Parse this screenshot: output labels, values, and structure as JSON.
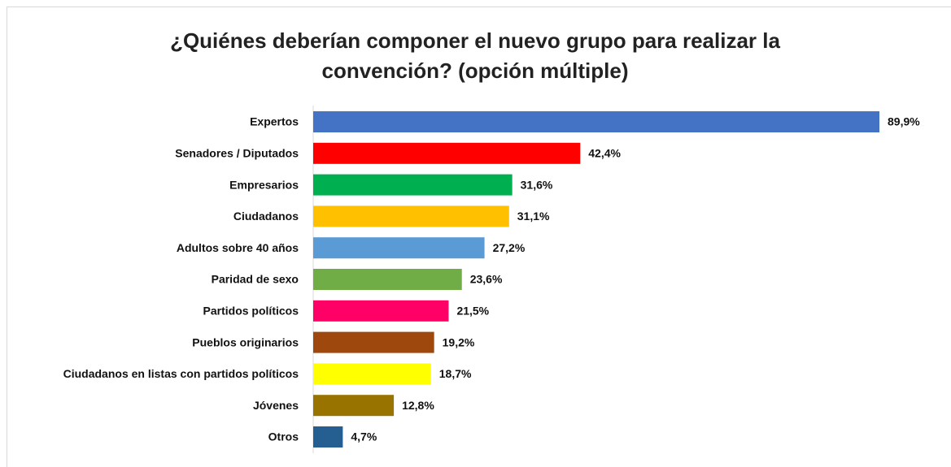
{
  "chart_data": {
    "type": "bar",
    "orientation": "horizontal",
    "title": "¿Quiénes deberían componer el nuevo grupo para realizar la convención? (opción múltiple)",
    "categories": [
      "Expertos",
      "Senadores / Diputados",
      "Empresarios",
      "Ciudadanos",
      "Adultos sobre 40 años",
      "Paridad de sexo",
      "Partidos políticos",
      "Pueblos originarios",
      "Ciudadanos en listas con partidos políticos",
      "Jóvenes",
      "Otros"
    ],
    "values": [
      89.9,
      42.4,
      31.6,
      31.1,
      27.2,
      23.6,
      21.5,
      19.2,
      18.7,
      12.8,
      4.7
    ],
    "value_labels": [
      "89,9%",
      "42,4%",
      "31,6%",
      "31,1%",
      "27,2%",
      "23,6%",
      "21,5%",
      "19,2%",
      "18,7%",
      "12,8%",
      "4,7%"
    ],
    "colors": [
      "#4472c4",
      "#ff0000",
      "#00b050",
      "#ffc000",
      "#5b9bd5",
      "#70ad47",
      "#ff0066",
      "#9e480e",
      "#ffff00",
      "#997300",
      "#255e91"
    ]
  }
}
